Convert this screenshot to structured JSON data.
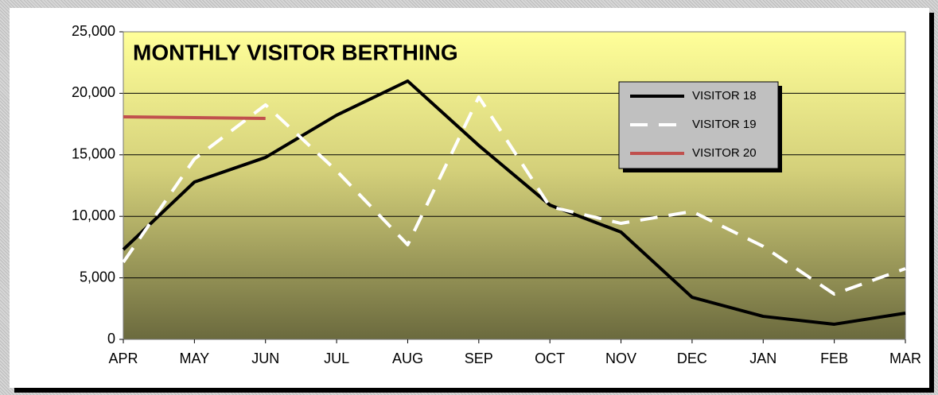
{
  "chart_data": {
    "type": "line",
    "title": "MONTHLY VISITOR BERTHING",
    "categories": [
      "APR",
      "MAY",
      "JUN",
      "JUL",
      "AUG",
      "SEP",
      "OCT",
      "NOV",
      "DEC",
      "JAN",
      "FEB",
      "MAR"
    ],
    "series": [
      {
        "name": "VISITOR 18",
        "color": "#000000",
        "dash": false,
        "values": [
          7300,
          12790,
          14790,
          18220,
          21000,
          15760,
          10920,
          8720,
          3420,
          1870,
          1230,
          2130
        ]
      },
      {
        "name": "VISITOR 19",
        "color": "#ffffff",
        "dash": true,
        "values": [
          6270,
          14660,
          19060,
          13700,
          7690,
          19700,
          10790,
          9430,
          10400,
          7560,
          3680,
          5750
        ]
      },
      {
        "name": "VISITOR 20",
        "color": "#c0504d",
        "dash": false,
        "values": [
          18090,
          18020,
          17960,
          null,
          null,
          null,
          null,
          null,
          null,
          null,
          null,
          null
        ]
      }
    ],
    "ylim": [
      0,
      25000
    ],
    "yticks": [
      0,
      {
        "value": 5000,
        "label": "5,000"
      },
      {
        "value": 10000,
        "label": "10,000"
      },
      {
        "value": 15000,
        "label": "15,000"
      },
      {
        "value": 20000,
        "label": "20,000"
      },
      {
        "value": 25000,
        "label": "25,000"
      }
    ],
    "grid": true,
    "legend": "top-right"
  }
}
